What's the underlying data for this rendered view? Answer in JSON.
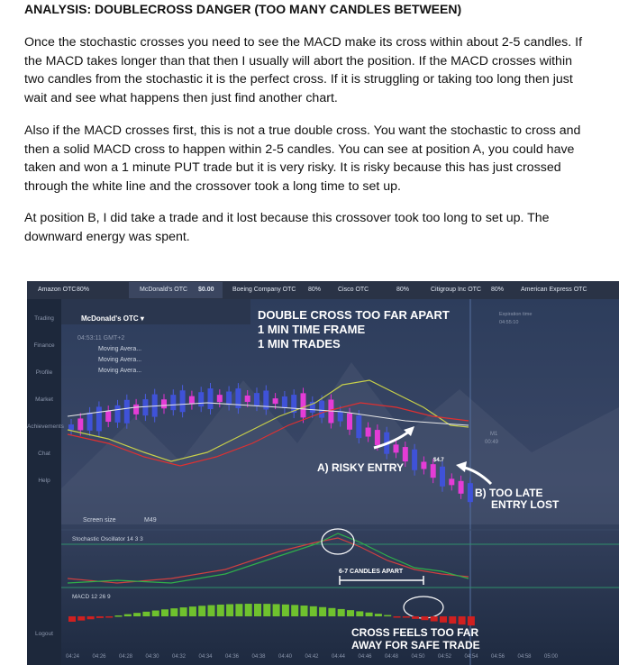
{
  "header": {
    "title": "ANALYSIS: DOUBLECROSS DANGER (TOO MANY CANDLES BETWEEN)"
  },
  "paragraphs": [
    "Once the stochastic crosses you need to see the MACD make its cross within about 2-5 candles.  If the MACD takes longer than that then I usually will abort the position.  If the MACD crosses within two candles from the stochastic it is the perfect cross.  If it is struggling or taking too long then just wait and see what happens then just find another chart.",
    "Also if the MACD crosses first, this is not a true double cross.  You want the stochastic to cross and then a solid MACD cross to happen within 2-5 candles.  You can see at position A, you could have taken and won a 1 minute PUT trade but it is very risky.  It is risky because this has just crossed through the white line and the crossover took a long time to set up.",
    "At position B, I did take a trade and it lost because this crossover took too long to set up.  The downward energy was spent."
  ],
  "screenshot": {
    "tabs": [
      {
        "name": "Amazon OTC",
        "info": "80%"
      },
      {
        "name": "McDonald's OTC",
        "info": "$0.00"
      },
      {
        "name": "Boeing Company OTC",
        "info": "80%"
      },
      {
        "name": "Cisco OTC",
        "info": "80%"
      },
      {
        "name": "Citigroup Inc OTC",
        "info": "80%"
      },
      {
        "name": "American Express OTC"
      }
    ],
    "sidebar": [
      "Trading",
      "Finance",
      "Profile",
      "Market",
      "Achievements",
      "Chat",
      "Help",
      "Logout"
    ],
    "asset": "McDonald's OTC ▾",
    "clock": "04:53:11 GMT+2",
    "indicators": [
      "Moving Avera...",
      "Moving Avera...",
      "Moving Avera..."
    ],
    "screen_size": "Screen size",
    "timeframe": "M49",
    "stochastic": "Stochastic Oscillator 14 3 3",
    "macd": "MACD 12 26 9",
    "expiration_label": "Expiration time",
    "expiration_time": "04:55:10",
    "candle_tf": "M1",
    "candle_timer": "00:49",
    "price_tag": "$4.7",
    "annotations": {
      "heading": [
        "DOUBLE CROSS TOO FAR APART",
        "1 MIN TIME FRAME",
        "1 MIN TRADES"
      ],
      "a": "A) RISKY ENTRY",
      "b": [
        "B) TOO LATE",
        "ENTRY LOST"
      ],
      "span": "6-7 CANDLES APART",
      "macd_note": [
        "CROSS FEELS TOO FAR",
        "AWAY FOR SAFE TRADE"
      ]
    },
    "time_axis": [
      "04:24",
      "04:26",
      "04:28",
      "04:30",
      "04:32",
      "04:34",
      "04:36",
      "04:38",
      "04:40",
      "04:42",
      "04:44",
      "04:46",
      "04:48",
      "04:50",
      "04:52",
      "04:54",
      "04:56",
      "04:58",
      "05:00"
    ]
  }
}
